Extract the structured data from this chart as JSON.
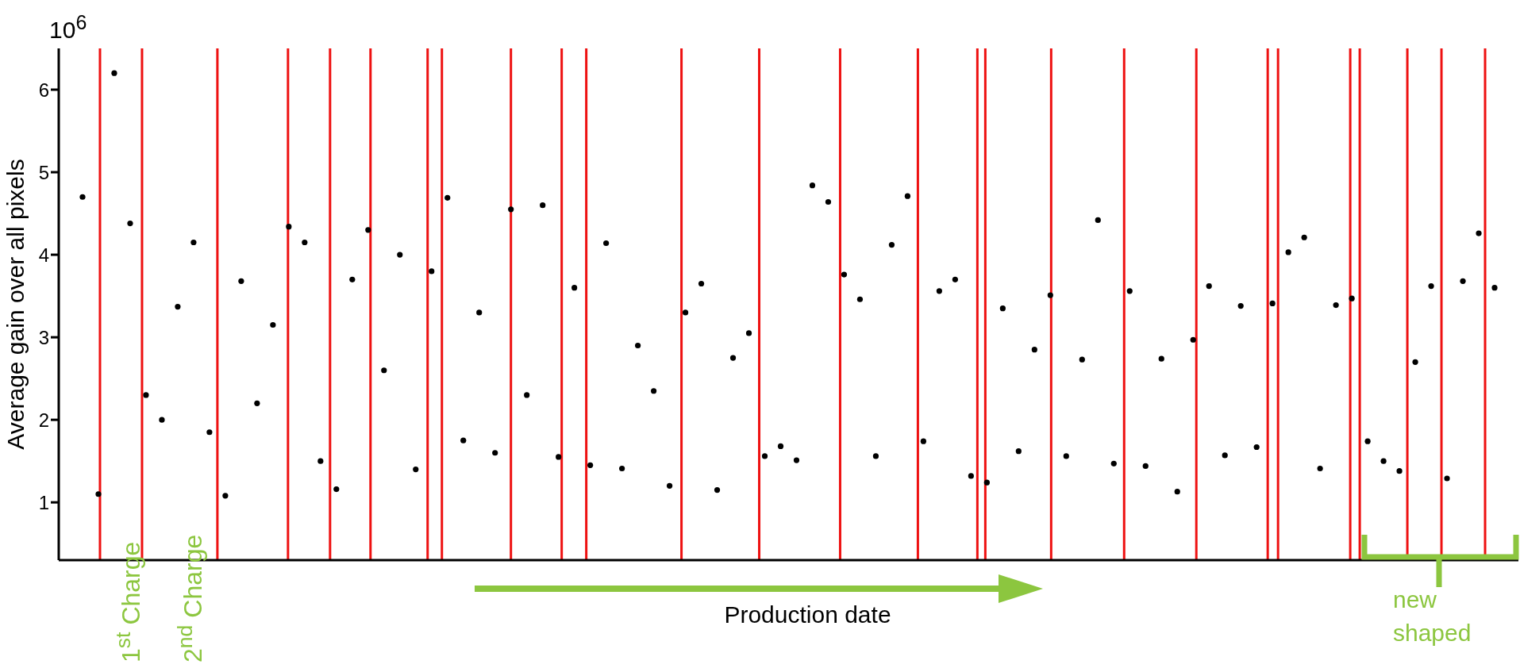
{
  "chart_data": {
    "type": "scatter",
    "ylabel": "Average gain over all pixels",
    "xlabel": "Production date",
    "annotations": [
      "10$^{6}$",
      "1$^{st}$ Charge",
      "2$^{nd}$ Charge",
      "new shaped"
    ],
    "categories": [
      null,
      null,
      null,
      null,
      null,
      null,
      null,
      null,
      null,
      null,
      null,
      null,
      null,
      null,
      null,
      null,
      null,
      null,
      null,
      null,
      null,
      null,
      null,
      null,
      null,
      null,
      null,
      null,
      null,
      null,
      null,
      null,
      null,
      null,
      null,
      null,
      null,
      null,
      null,
      null,
      null,
      null,
      null,
      null,
      null,
      null,
      null,
      null,
      null,
      null,
      null,
      null,
      null,
      null,
      null,
      null,
      null,
      null,
      null,
      null,
      null,
      null,
      null,
      null,
      null,
      null,
      null,
      null,
      null,
      null,
      null,
      null,
      null,
      null,
      null,
      null,
      null,
      null,
      null,
      null,
      null,
      null,
      null,
      null,
      null,
      null,
      null,
      null,
      null,
      null,
      null,
      null
    ],
    "series": [
      {
        "color": "#000000",
        "values": [
          null,
          4.7,
          1.1,
          6.2,
          4.38,
          2.3,
          2.0,
          3.37,
          4.15,
          1.85,
          1.08,
          3.68,
          2.2,
          3.15,
          4.34,
          4.15,
          1.5,
          1.16,
          3.7,
          4.3,
          2.6,
          4.0,
          1.4,
          3.8,
          4.69,
          1.75,
          3.3,
          1.6,
          4.55,
          2.3,
          4.6,
          1.55,
          3.6,
          1.45,
          4.14,
          1.41,
          2.9,
          2.35,
          1.2,
          3.3,
          3.65,
          1.15,
          2.75,
          3.05,
          1.56,
          1.68,
          1.51,
          4.84,
          4.64,
          3.76,
          3.46,
          1.56,
          4.12,
          4.71,
          1.74,
          3.56,
          3.7,
          1.32,
          1.24,
          3.35,
          1.62,
          2.85,
          3.51,
          1.56,
          2.73,
          4.42,
          1.47,
          3.56,
          1.44,
          2.74,
          1.13,
          2.97,
          3.62,
          1.57,
          3.38,
          1.67,
          3.41,
          4.03,
          4.21,
          1.41,
          3.39,
          3.47,
          1.74,
          1.5,
          1.38,
          2.7,
          3.62,
          1.29,
          3.68,
          4.26,
          3.6,
          null
        ]
      }
    ],
    "marker": "circle",
    "ylim": [
      0.3,
      6.5
    ],
    "yticks": [
      1,
      2,
      3,
      4,
      5,
      6
    ],
    "tick_labels": "y",
    "grid": "x"
  }
}
